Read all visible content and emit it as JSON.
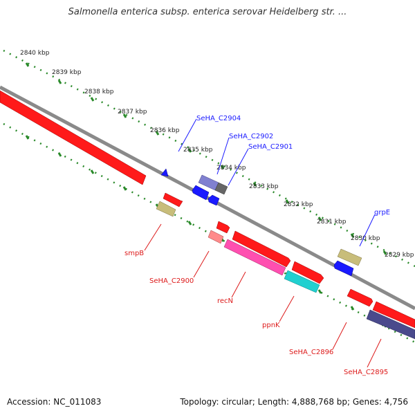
{
  "title": "Salmonella enterica subsp. enterica serovar Heidelberg str. ...",
  "footer": {
    "accession": "Accession: NC_011083",
    "stats": "Topology: circular; Length: 4,888,768 bp; Genes: 4,756"
  },
  "colors": {
    "red": "#ff1a1a",
    "blue": "#1a1aff",
    "olive": "#c8bd7a",
    "pink": "#ff4fb0",
    "cyan": "#20d0d0",
    "navy": "#4a4a8c",
    "lavender": "#8080d0",
    "salmon": "#ff8a8a",
    "green": "#2a8a2a",
    "backbone": "#8a8a8a"
  },
  "kbp_ticks": [
    "2840 kbp",
    "2839 kbp",
    "2838 kbp",
    "2837 kbp",
    "2836 kbp",
    "2835 kbp",
    "2834 kbp",
    "2833 kbp",
    "2832 kbp",
    "2831 kbp",
    "2830 kbp",
    "2829 kbp"
  ],
  "gene_labels": {
    "blue": [
      "SeHA_C2904",
      "SeHA_C2902",
      "SeHA_C2901",
      "grpE"
    ],
    "red": [
      "smpB",
      "SeHA_C2900",
      "recN",
      "ppnK",
      "SeHA_C2896",
      "SeHA_C2895"
    ]
  }
}
